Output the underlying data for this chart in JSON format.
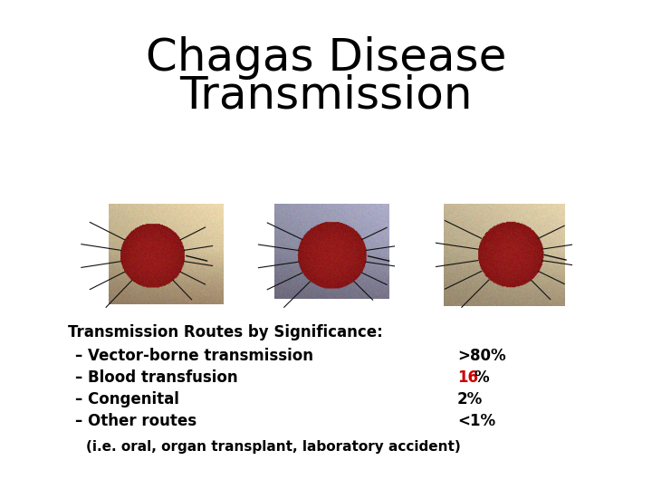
{
  "title_line1": "Chagas Disease",
  "title_line2": "Transmission",
  "title_fontsize": 36,
  "title_color": "#000000",
  "title_fontweight": "normal",
  "background_color": "#ffffff",
  "subtitle": "Transmission Routes by Significance:",
  "subtitle_fontsize": 12,
  "subtitle_fontweight": "bold",
  "subtitle_color": "#000000",
  "routes": [
    {
      "label": "– Vector-borne transmission",
      "value": ">80%",
      "value_color": "#000000"
    },
    {
      "label": "– Blood transfusion",
      "value": "16%",
      "value_color": "#cc0000"
    },
    {
      "label": "– Congenital",
      "value": "2%",
      "value_color": "#000000"
    },
    {
      "label": "– Other routes",
      "value": "<1%",
      "value_color": "#000000"
    }
  ],
  "footnote": "(i.e. oral, organ transplant, laboratory accident)",
  "footnote_fontsize": 11,
  "routes_fontsize": 12,
  "photo1_bg": [
    0.85,
    0.78,
    0.62
  ],
  "photo2_bg": [
    0.62,
    0.62,
    0.72
  ],
  "photo3_bg": [
    0.82,
    0.76,
    0.62
  ],
  "photo_shadow1": [
    0.5,
    0.38,
    0.3
  ],
  "photo_shadow2": [
    0.38,
    0.35,
    0.42
  ],
  "photo_shadow3": [
    0.55,
    0.48,
    0.38
  ]
}
